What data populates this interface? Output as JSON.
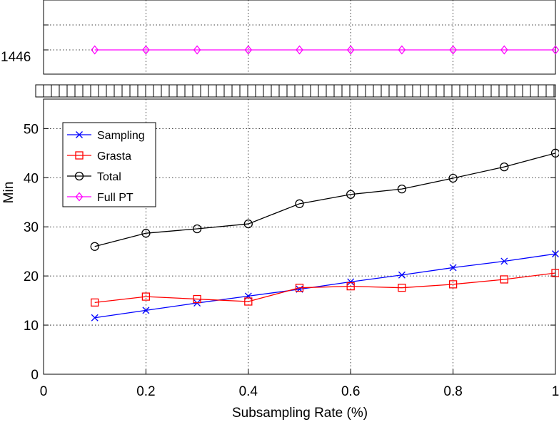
{
  "chart_data": {
    "type": "line",
    "title": "",
    "xlabel": "Subsampling Rate (%)",
    "ylabel": "Min",
    "xlim": [
      0,
      1
    ],
    "ylim": [
      0,
      56
    ],
    "x_ticks": [
      0,
      0.2,
      0.4,
      0.6,
      0.8,
      1
    ],
    "x_tick_labels": [
      "0",
      "0.2",
      "0.4",
      "0.6",
      "0.8",
      "1"
    ],
    "y_ticks": [
      0,
      10,
      20,
      30,
      40,
      50
    ],
    "y_tick_labels": [
      "0",
      "10",
      "20",
      "30",
      "40",
      "50"
    ],
    "broken_axis": true,
    "upper_panel_tick_label": "1446",
    "grid": true,
    "legend_position": "top-left",
    "x": [
      0.1,
      0.2,
      0.3,
      0.4,
      0.5,
      0.6,
      0.7,
      0.8,
      0.9,
      1.0
    ],
    "series": [
      {
        "name": "Sampling",
        "color": "#0000ff",
        "marker": "x",
        "values": [
          11.5,
          13.0,
          14.5,
          15.9,
          17.3,
          18.8,
          20.2,
          21.7,
          23.0,
          24.5
        ]
      },
      {
        "name": "Grasta",
        "color": "#ff0000",
        "marker": "square",
        "values": [
          14.6,
          15.8,
          15.3,
          14.8,
          17.6,
          17.9,
          17.6,
          18.3,
          19.3,
          20.6
        ]
      },
      {
        "name": "Total",
        "color": "#000000",
        "marker": "circle",
        "values": [
          26.0,
          28.7,
          29.6,
          30.6,
          34.7,
          36.6,
          37.7,
          39.9,
          42.2,
          45.0
        ]
      },
      {
        "name": "Full PT",
        "color": "#ff00ff",
        "marker": "diamond",
        "values": [
          1446,
          1446,
          1446,
          1446,
          1446,
          1446,
          1446,
          1446,
          1446,
          1446
        ]
      }
    ]
  }
}
